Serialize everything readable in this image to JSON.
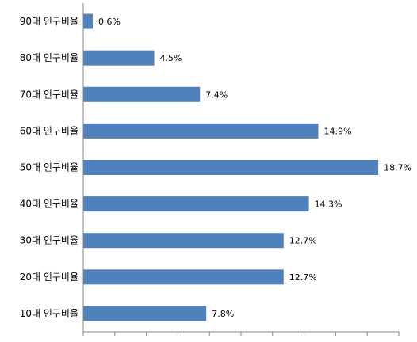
{
  "chart_data": {
    "type": "bar",
    "orientation": "horizontal",
    "categories": [
      "90대 인구비율",
      "80대 인구비율",
      "70대 인구비율",
      "60대 인구비율",
      "50대 인구비율",
      "40대 인구비율",
      "30대 인구비율",
      "20대 인구비율",
      "10대 인구비율"
    ],
    "values": [
      0.6,
      4.5,
      7.4,
      14.9,
      18.7,
      14.3,
      12.7,
      12.7,
      7.8
    ],
    "data_labels": [
      "0.6%",
      "4.5%",
      "7.4%",
      "14.9%",
      "18.7%",
      "14.3%",
      "12.7%",
      "12.7%",
      "7.8%"
    ],
    "xlim": [
      0,
      20
    ],
    "bar_color": "#4F81BD",
    "axis_color": "#868686",
    "grid": false,
    "legend": "none",
    "title": "",
    "xlabel": "",
    "ylabel": ""
  }
}
